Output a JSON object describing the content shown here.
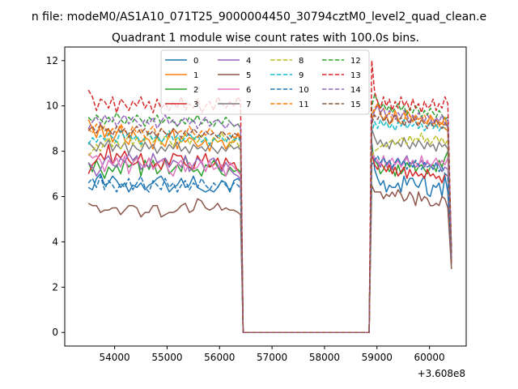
{
  "figure": {
    "suptitle": "n file: modeM0/AS1A10_071T25_9000004450_30794cztM0_level2_quad_clean.e",
    "title": "Quadrant 1 module wise count rates with 100.0s bins.",
    "x_offset_label": "+3.608e8"
  },
  "colors": {
    "0": "#1f77b4",
    "1": "#ff7f0e",
    "2": "#2ca02c",
    "3": "#d62728",
    "4": "#9467bd",
    "5": "#8c564b",
    "6": "#e377c2",
    "7": "#7f7f7f",
    "8": "#bcbd22",
    "9": "#17becf",
    "10": "#1f77b4",
    "11": "#ff7f0e",
    "12": "#2ca02c",
    "13": "#d62728",
    "14": "#9467bd",
    "15": "#8c564b"
  },
  "chart_data": {
    "type": "line",
    "title": "Quadrant 1 module wise count rates with 100.0s bins.",
    "xlabel": "",
    "ylabel": "",
    "x_offset": 360800000,
    "xlim": [
      53050,
      60700
    ],
    "ylim": [
      -0.6,
      12.6
    ],
    "xticks": [
      54000,
      55000,
      56000,
      57000,
      58000,
      59000,
      60000
    ],
    "yticks": [
      0,
      2,
      4,
      6,
      8,
      10,
      12
    ],
    "legend": {
      "placement": "top-center",
      "columns": 4
    },
    "grid": false,
    "series": [
      {
        "name": "0",
        "style": "solid",
        "gap_level": 0,
        "end_value": 3.0,
        "seg1": [
          6.4,
          6.3,
          6.8,
          7.0,
          6.5,
          6.6,
          6.9,
          6.7,
          6.4,
          6.6,
          6.2,
          6.5,
          6.4,
          6.6,
          6.3,
          6.5,
          6.6,
          6.8,
          6.9,
          6.6,
          6.2,
          6.4,
          6.5,
          6.8,
          6.4,
          6.5,
          6.9,
          6.4,
          6.3,
          6.2,
          6.3,
          6.2,
          6.4,
          6.7,
          6.6,
          6.2,
          6.7,
          6.8
        ],
        "seg2": [
          8.4,
          7.2,
          6.8,
          6.5,
          6.7,
          6.2,
          6.5,
          6.4,
          6.4,
          6.6,
          6.2,
          6.9,
          6.5,
          6.8,
          6.8,
          6.5,
          6.4,
          6.7,
          6.9,
          6.1,
          6.0,
          6.5,
          6.4,
          6.6,
          6.0,
          6.9,
          6.2
        ]
      },
      {
        "name": "1",
        "style": "solid",
        "gap_level": 0,
        "end_value": 3.4,
        "seg1": [
          9.4,
          9.0,
          8.6,
          9.2,
          8.6,
          9.0,
          8.4,
          8.8,
          9.1,
          8.5,
          8.3,
          8.9,
          8.6,
          8.4,
          8.6,
          8.5,
          8.1,
          8.7,
          8.4,
          8.2,
          8.8,
          8.9,
          8.1,
          8.6,
          8.4,
          8.6,
          8.5,
          8.2,
          8.3,
          8.5,
          8.0,
          8.6,
          8.4,
          8.5,
          8.1,
          8.4,
          8.4,
          8.8
        ],
        "seg2": [
          9.3,
          9.8,
          10.1,
          9.6,
          9.4,
          9.6,
          9.2,
          9.3,
          9.8,
          9.4,
          9.2,
          9.3,
          9.8,
          9.6,
          9.3,
          9.6,
          9.4,
          9.5,
          9.3,
          9.2,
          9.6,
          9.4,
          9.1,
          9.3,
          9.2,
          9.5,
          9.0
        ]
      },
      {
        "name": "2",
        "style": "solid",
        "gap_level": 0,
        "end_value": 3.6,
        "seg1": [
          7.5,
          7.1,
          7.6,
          7.2,
          6.8,
          7.3,
          7.1,
          7.4,
          7.0,
          7.6,
          7.3,
          7.5,
          7.8,
          6.9,
          7.6,
          7.2,
          7.6,
          7.0,
          7.2,
          7.6,
          7.0,
          7.2,
          7.4,
          7.1,
          7.8,
          7.3,
          7.1,
          7.2,
          6.9,
          7.4,
          7.3,
          7.6,
          7.3,
          7.0,
          6.9,
          7.3,
          7.1,
          7.2
        ],
        "seg2": [
          8.2,
          7.6,
          7.4,
          7.0,
          7.2,
          7.5,
          7.1,
          7.3,
          6.9,
          7.4,
          7.0,
          7.2,
          7.5,
          7.3,
          7.6,
          7.1,
          7.3,
          7.4,
          7.2,
          7.0,
          7.3,
          7.4,
          7.1,
          7.6,
          7.3,
          7.7,
          8.0
        ]
      },
      {
        "name": "3",
        "style": "solid",
        "gap_level": 0,
        "end_value": 3.1,
        "seg1": [
          7.0,
          7.4,
          7.6,
          7.9,
          7.6,
          8.3,
          7.4,
          7.9,
          7.7,
          8.0,
          7.6,
          7.4,
          7.5,
          7.9,
          7.3,
          7.7,
          7.3,
          7.5,
          7.2,
          7.7,
          7.4,
          7.9,
          7.8,
          7.8,
          7.4,
          7.3,
          7.2,
          7.8,
          7.5,
          7.9,
          7.3,
          7.4,
          7.7,
          7.2,
          7.7,
          7.4,
          7.5,
          7.1
        ],
        "seg2": [
          7.9,
          7.4,
          7.2,
          7.5,
          7.3,
          7.1,
          7.4,
          7.0,
          7.3,
          6.9,
          7.1,
          7.3,
          6.8,
          7.2,
          6.9,
          7.1,
          6.9,
          7.0,
          6.8,
          7.2,
          6.9,
          7.0,
          6.8,
          6.9,
          6.6,
          7.0,
          6.9
        ]
      },
      {
        "name": "4",
        "style": "solid",
        "gap_level": 0,
        "end_value": 3.5,
        "seg1": [
          7.5,
          7.3,
          6.9,
          7.2,
          7.6,
          7.8,
          7.4,
          7.3,
          7.7,
          7.5,
          7.9,
          7.6,
          7.8,
          7.2,
          7.4,
          7.3,
          7.9,
          7.5,
          7.6,
          7.7,
          7.3,
          7.6,
          7.5,
          7.3,
          7.8,
          7.1,
          7.4,
          7.7,
          7.5,
          7.1,
          7.6,
          7.7,
          7.4,
          7.1,
          7.5,
          7.2,
          7.0,
          6.9
        ],
        "seg2": [
          8.0,
          7.6,
          7.5,
          7.3,
          7.8,
          7.4,
          7.6,
          7.2,
          7.5,
          7.7,
          7.3,
          7.6,
          7.8,
          7.4,
          7.5,
          7.3,
          7.4,
          7.6,
          7.3,
          7.5,
          7.4,
          7.2,
          7.5,
          7.4,
          7.1,
          7.3,
          7.2
        ]
      },
      {
        "name": "5",
        "style": "solid",
        "gap_level": 0,
        "end_value": 2.8,
        "seg1": [
          5.7,
          5.6,
          5.6,
          5.3,
          5.4,
          5.4,
          5.5,
          5.5,
          5.2,
          5.4,
          5.6,
          5.6,
          5.5,
          5.1,
          5.3,
          5.3,
          5.6,
          5.6,
          5.1,
          5.2,
          5.3,
          5.3,
          5.4,
          5.6,
          5.7,
          5.3,
          5.4,
          5.9,
          5.8,
          5.5,
          5.4,
          5.5,
          5.7,
          5.4,
          5.5,
          5.4,
          5.4,
          5.3
        ],
        "seg2": [
          6.5,
          6.2,
          6.2,
          6.2,
          5.9,
          6.1,
          6.0,
          6.2,
          6.0,
          6.3,
          6.1,
          5.8,
          5.9,
          6.2,
          6.0,
          5.6,
          6.2,
          5.8,
          6.0,
          5.9,
          5.6,
          5.6,
          5.7,
          5.6,
          6.0,
          5.9,
          5.5
        ]
      },
      {
        "name": "6",
        "style": "solid",
        "gap_level": 0,
        "end_value": 3.3,
        "seg1": [
          7.9,
          7.7,
          7.8,
          7.6,
          7.1,
          7.6,
          7.4,
          7.7,
          7.3,
          7.8,
          7.0,
          7.5,
          7.7,
          7.4,
          7.3,
          7.7,
          7.2,
          7.4,
          7.6,
          7.5,
          7.1,
          6.9,
          7.4,
          7.6,
          7.1,
          7.5,
          7.2,
          7.3,
          7.6,
          7.1,
          7.6,
          7.2,
          7.3,
          7.4,
          6.9,
          7.5,
          7.3,
          7.1
        ],
        "seg2": [
          8.0,
          7.7,
          7.6,
          7.4,
          7.8,
          7.3,
          7.5,
          7.7,
          7.4,
          7.6,
          7.3,
          7.5,
          7.7,
          7.4,
          7.6,
          7.5,
          7.3,
          7.8,
          7.4,
          7.6,
          7.3,
          7.5,
          7.7,
          7.4,
          7.6,
          7.4,
          7.7
        ]
      },
      {
        "name": "7",
        "style": "solid",
        "gap_level": 0,
        "end_value": 3.4,
        "seg1": [
          8.4,
          8.2,
          8.0,
          8.4,
          8.2,
          8.5,
          8.0,
          8.3,
          8.1,
          8.4,
          7.9,
          8.3,
          8.1,
          8.0,
          8.4,
          8.1,
          8.3,
          7.9,
          8.2,
          8.0,
          8.3,
          8.1,
          8.4,
          8.0,
          8.2,
          7.9,
          8.3,
          8.1,
          8.2,
          8.0,
          8.3,
          8.1,
          7.9,
          8.2,
          8.0,
          8.3,
          8.1,
          8.2
        ],
        "seg2": [
          9.0,
          8.6,
          8.3,
          8.5,
          8.2,
          8.4,
          8.1,
          8.5,
          8.3,
          8.4,
          8.2,
          8.6,
          8.3,
          8.1,
          8.4,
          8.2,
          8.5,
          8.3,
          8.1,
          8.4,
          8.2,
          8.3,
          8.0,
          8.4,
          8.2,
          8.3,
          8.1
        ]
      },
      {
        "name": "8",
        "style": "dashed",
        "gap_level": 0,
        "end_value": 3.3,
        "seg1": [
          7.8,
          8.0,
          8.3,
          8.0,
          8.4,
          8.6,
          8.2,
          8.5,
          8.1,
          8.4,
          8.7,
          8.3,
          8.6,
          8.2,
          8.5,
          8.8,
          8.4,
          8.6,
          8.3,
          8.7,
          8.5,
          8.2,
          8.6,
          8.4,
          8.8,
          8.3,
          8.6,
          8.4,
          8.7,
          8.5,
          8.3,
          8.6,
          8.4,
          8.8,
          8.5,
          8.2,
          8.6,
          8.3
        ],
        "seg2": [
          7.8,
          8.0,
          8.1,
          8.2,
          8.3,
          8.2,
          8.4,
          8.5,
          8.3,
          8.4,
          8.6,
          8.5,
          8.3,
          8.7,
          8.4,
          8.6,
          8.5,
          8.8,
          8.4,
          8.6,
          8.3,
          8.5,
          8.7,
          8.4,
          8.6,
          8.3,
          8.5
        ]
      },
      {
        "name": "9",
        "style": "dashed",
        "gap_level": 0,
        "end_value": 3.4,
        "seg1": [
          8.3,
          8.6,
          8.4,
          8.7,
          8.5,
          8.8,
          8.6,
          8.4,
          8.9,
          8.6,
          8.8,
          8.5,
          8.7,
          8.3,
          8.6,
          8.8,
          8.5,
          8.7,
          8.4,
          8.6,
          8.9,
          8.5,
          8.7,
          8.4,
          8.6,
          8.8,
          8.5,
          8.7,
          8.4,
          8.6,
          8.3,
          8.5,
          8.7,
          8.6,
          8.4,
          8.7,
          8.5,
          8.6
        ],
        "seg2": [
          8.8,
          9.3,
          9.0,
          9.4,
          9.1,
          9.3,
          9.0,
          9.2,
          8.9,
          9.3,
          9.1,
          9.4,
          9.0,
          9.2,
          9.1,
          9.3,
          9.0,
          9.2,
          8.9,
          9.1,
          9.3,
          9.0,
          9.2,
          8.9,
          9.1,
          9.0,
          9.2
        ]
      },
      {
        "name": "10",
        "style": "dashed",
        "gap_level": 0,
        "end_value": 3.2,
        "seg1": [
          6.6,
          6.8,
          6.4,
          6.9,
          6.3,
          6.7,
          6.5,
          6.2,
          6.6,
          6.4,
          6.8,
          6.3,
          6.6,
          6.9,
          6.4,
          6.2,
          6.7,
          6.5,
          6.3,
          6.8,
          6.4,
          6.6,
          6.2,
          6.5,
          6.7,
          6.3,
          6.6,
          6.4,
          6.8,
          6.5,
          6.3,
          6.6,
          6.4,
          6.7,
          6.5,
          6.3,
          6.6,
          6.5
        ],
        "seg2": [
          7.4,
          7.6,
          7.8,
          7.5,
          7.7,
          7.4,
          7.6,
          7.3,
          7.5,
          7.7,
          7.4,
          7.6,
          7.2,
          7.5,
          7.3,
          7.6,
          7.4,
          7.2,
          7.5,
          7.3,
          7.4,
          7.2,
          7.5,
          7.1,
          7.3,
          7.0,
          6.9
        ]
      },
      {
        "name": "11",
        "style": "dashed",
        "gap_level": 0,
        "end_value": 3.5,
        "seg1": [
          9.0,
          8.8,
          9.2,
          8.9,
          9.1,
          8.7,
          9.0,
          8.8,
          9.2,
          8.9,
          8.7,
          9.1,
          8.8,
          9.0,
          8.6,
          8.9,
          9.1,
          8.7,
          9.0,
          8.8,
          8.6,
          9.0,
          8.8,
          8.9,
          8.7,
          9.1,
          8.8,
          8.6,
          8.9,
          8.7,
          9.0,
          8.8,
          8.6,
          8.9,
          8.7,
          8.8,
          8.6,
          8.7
        ],
        "seg2": [
          9.6,
          9.9,
          10.1,
          9.7,
          9.9,
          9.5,
          9.7,
          9.4,
          9.6,
          9.3,
          9.5,
          9.7,
          9.4,
          9.6,
          9.3,
          9.5,
          9.2,
          9.4,
          9.6,
          9.3,
          9.5,
          9.2,
          9.4,
          9.1,
          9.3,
          9.0,
          8.9
        ]
      },
      {
        "name": "12",
        "style": "dashed",
        "gap_level": 0,
        "end_value": 3.6,
        "seg1": [
          9.5,
          9.3,
          9.6,
          9.4,
          9.2,
          9.5,
          9.3,
          9.7,
          9.4,
          9.2,
          9.5,
          9.3,
          9.6,
          9.4,
          9.1,
          9.5,
          9.3,
          9.6,
          9.2,
          9.4,
          9.5,
          9.3,
          9.1,
          9.4,
          9.2,
          9.5,
          9.3,
          9.6,
          9.2,
          9.4,
          9.3,
          9.1,
          9.4,
          9.2,
          9.5,
          9.3,
          9.1,
          9.2
        ],
        "seg2": [
          10.0,
          10.5,
          10.2,
          9.9,
          10.1,
          9.8,
          10.0,
          9.7,
          9.9,
          10.1,
          9.8,
          10.0,
          9.6,
          9.9,
          9.7,
          10.0,
          9.8,
          9.5,
          9.8,
          9.6,
          9.9,
          9.7,
          9.5,
          9.8,
          9.6,
          9.4,
          9.5
        ]
      },
      {
        "name": "13",
        "style": "dashed",
        "gap_level": 0,
        "end_value": 3.5,
        "seg1": [
          10.7,
          10.4,
          9.8,
          10.3,
          10.2,
          9.9,
          10.4,
          9.7,
          10.3,
          10.1,
          9.8,
          10.2,
          10.0,
          10.4,
          9.9,
          10.2,
          9.7,
          10.3,
          9.9,
          10.1,
          9.8,
          10.2,
          9.9,
          10.4,
          9.8,
          10.1,
          9.9,
          10.3,
          9.7,
          10.0,
          10.2,
          9.8,
          10.4,
          10.1,
          9.9,
          10.2,
          10.0,
          10.4
        ],
        "seg2": [
          12.0,
          10.6,
          10.2,
          9.9,
          10.4,
          10.0,
          10.3,
          9.8,
          10.2,
          9.9,
          10.4,
          10.0,
          10.2,
          9.8,
          10.3,
          9.9,
          10.1,
          9.7,
          10.2,
          9.9,
          10.0,
          10.3,
          9.8,
          10.1,
          9.9,
          10.4,
          10.1
        ]
      },
      {
        "name": "14",
        "style": "dashed",
        "gap_level": 0,
        "end_value": 3.4,
        "seg1": [
          9.0,
          9.3,
          9.5,
          9.2,
          9.6,
          9.3,
          9.5,
          9.1,
          9.4,
          9.6,
          9.2,
          9.5,
          9.3,
          9.1,
          9.4,
          9.2,
          9.5,
          9.0,
          9.3,
          9.6,
          9.2,
          9.4,
          9.1,
          9.3,
          9.5,
          9.2,
          9.4,
          9.0,
          9.3,
          9.5,
          9.1,
          9.3,
          9.4,
          9.2,
          9.0,
          9.3,
          9.1,
          9.2
        ],
        "seg2": [
          9.4,
          9.8,
          10.0,
          9.7,
          9.9,
          9.5,
          9.8,
          9.6,
          9.4,
          9.7,
          9.5,
          9.8,
          9.6,
          9.3,
          9.6,
          9.4,
          9.7,
          9.5,
          9.3,
          9.6,
          9.4,
          9.2,
          9.5,
          9.3,
          9.6,
          9.2,
          9.4
        ]
      },
      {
        "name": "15",
        "style": "dashed",
        "gap_level": 0,
        "end_value": 3.3,
        "seg1": [
          8.9,
          9.1,
          8.8,
          9.2,
          8.9,
          9.0,
          8.7,
          9.1,
          8.8,
          9.0,
          8.6,
          8.9,
          9.1,
          8.8,
          9.0,
          8.7,
          8.9,
          8.6,
          9.0,
          8.8,
          8.7,
          9.0,
          8.8,
          8.6,
          8.9,
          8.7,
          9.0,
          8.8,
          8.6,
          8.9,
          8.7,
          8.8,
          8.6,
          8.9,
          8.7,
          8.5,
          8.8,
          8.7
        ],
        "seg2": [
          9.2,
          9.6,
          9.4,
          9.7,
          9.3,
          9.5,
          9.2,
          9.4,
          9.6,
          9.3,
          9.5,
          9.1,
          9.4,
          9.2,
          9.5,
          9.3,
          9.1,
          9.4,
          9.2,
          9.0,
          9.3,
          9.1,
          9.4,
          9.2,
          9.0,
          9.2,
          9.1
        ]
      }
    ],
    "segment1": {
      "x_start": 53500,
      "x_end": 56350
    },
    "drop": {
      "x_end": 56400,
      "x_zero": 56450
    },
    "gap": {
      "x_start": 56450,
      "x_end": 58850
    },
    "segment2": {
      "x_start": 58900,
      "x_end": 60350
    },
    "tail": {
      "x_end": 60420
    }
  }
}
